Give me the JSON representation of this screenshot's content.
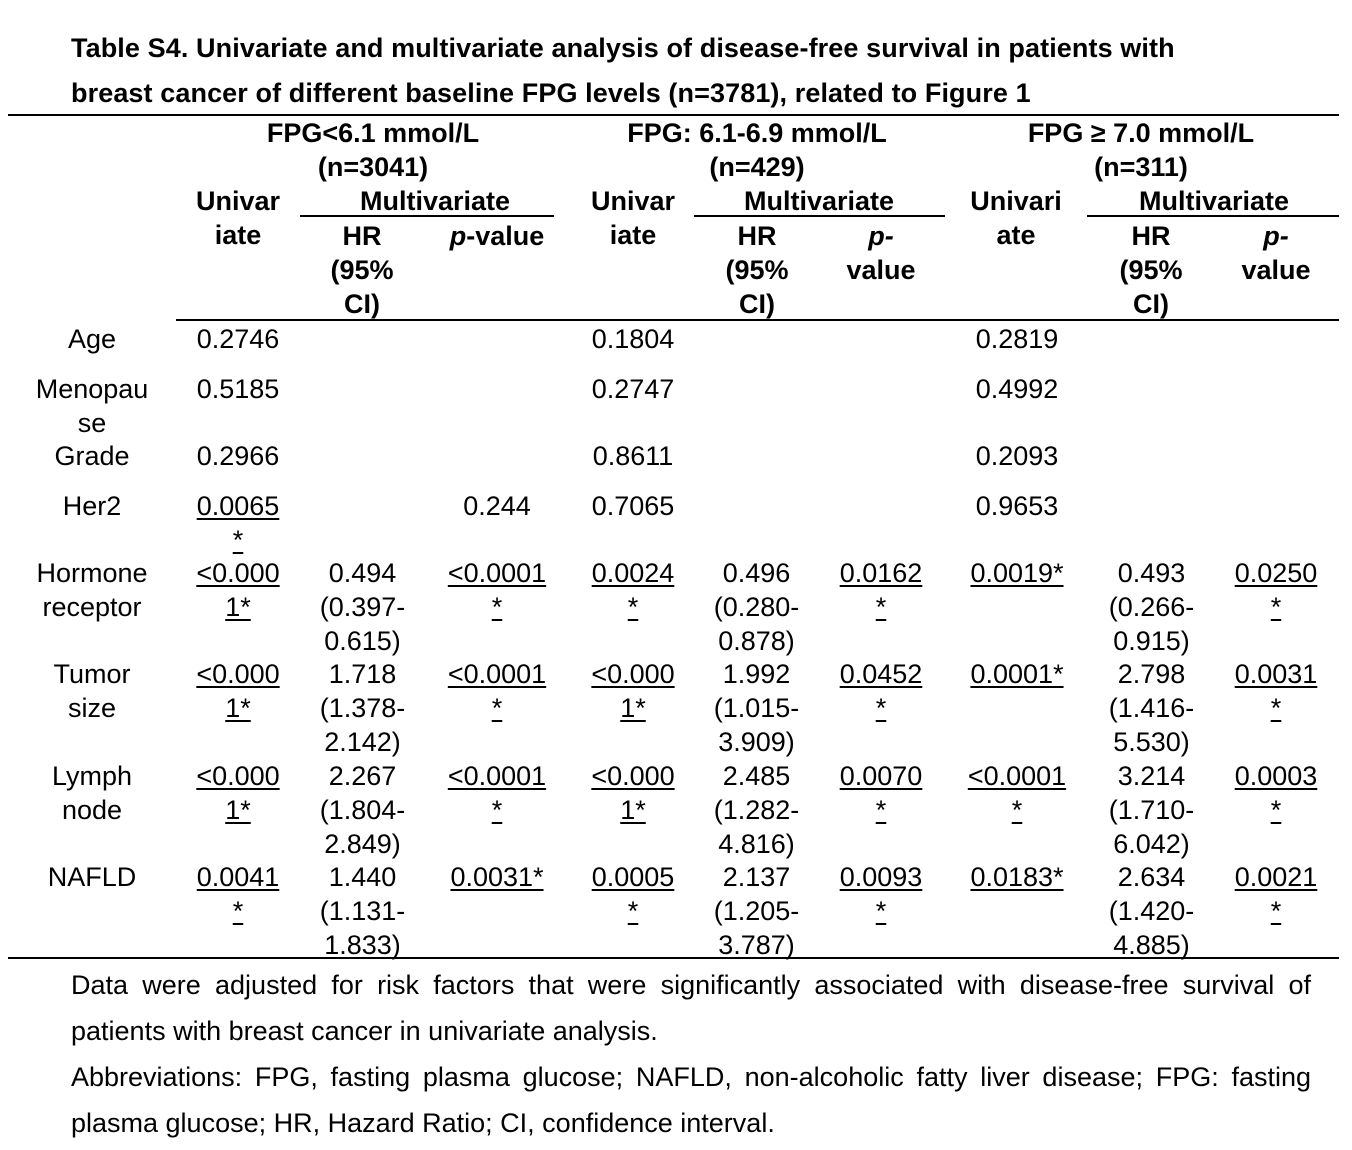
{
  "title_line1": "Table S4. Univariate and multivariate analysis of disease-free survival in patients with",
  "title_line2": "breast cancer of different baseline FPG levels (n=3781), related to Figure 1",
  "groups": [
    {
      "label": "FPG<6.1 mmol/L",
      "n": "(n=3041)"
    },
    {
      "label": "FPG: 6.1-6.9 mmol/L",
      "n": "(n=429)"
    },
    {
      "label": "FPG ≥ 7.0 mmol/L",
      "n": "(n=311)"
    }
  ],
  "headers": {
    "univ_a": "Univar",
    "univ_b": "iate",
    "univ3_a": "Univari",
    "univ3_b": "ate",
    "multivariate": "Multivariate",
    "hr_a": "HR",
    "hr_b": "(95%",
    "hr_c": "CI)",
    "p_full_italic": "p",
    "p_full_rest": "-value",
    "p_split_a": "p-",
    "p_split_b": "value"
  },
  "rows": [
    {
      "label": [
        "Age"
      ],
      "cells": [
        [
          "0.2746"
        ],
        [],
        [],
        [
          "0.1804"
        ],
        [],
        [],
        [
          "0.2819"
        ],
        [],
        []
      ]
    },
    {
      "label": [
        "Menopau",
        "se"
      ],
      "cells": [
        [
          "0.5185"
        ],
        [],
        [],
        [
          "0.2747"
        ],
        [],
        [],
        [
          "0.4992"
        ],
        [],
        []
      ]
    },
    {
      "label": [
        "Grade"
      ],
      "cells": [
        [
          "0.2966"
        ],
        [],
        [],
        [
          "0.8611"
        ],
        [],
        [],
        [
          "0.2093"
        ],
        [],
        []
      ]
    },
    {
      "label": [
        "Her2"
      ],
      "cells": [
        [
          "0.0065",
          "*"
        ],
        [],
        [
          "0.244"
        ],
        [
          "0.7065"
        ],
        [],
        [],
        [
          "0.9653"
        ],
        [],
        []
      ]
    },
    {
      "label": [
        "Hormone",
        "receptor"
      ],
      "cells": [
        [
          "<0.000",
          "1*"
        ],
        [
          "0.494",
          "(0.397-",
          "0.615)"
        ],
        [
          "<0.0001",
          "*"
        ],
        [
          "0.0024",
          "*"
        ],
        [
          "0.496",
          "(0.280-",
          "0.878)"
        ],
        [
          "0.0162",
          "*"
        ],
        [
          "0.0019*"
        ],
        [
          "0.493",
          "(0.266-",
          "0.915)"
        ],
        [
          "0.0250",
          "*"
        ]
      ]
    },
    {
      "label": [
        "Tumor",
        "size"
      ],
      "cells": [
        [
          "<0.000",
          "1*"
        ],
        [
          "1.718",
          "(1.378-",
          "2.142)"
        ],
        [
          "<0.0001",
          "*"
        ],
        [
          "<0.000",
          "1*"
        ],
        [
          "1.992",
          "(1.015-",
          "3.909)"
        ],
        [
          "0.0452",
          "*"
        ],
        [
          "0.0001*"
        ],
        [
          "2.798",
          "(1.416-",
          "5.530)"
        ],
        [
          "0.0031",
          "*"
        ]
      ]
    },
    {
      "label": [
        "Lymph",
        "node"
      ],
      "cells": [
        [
          "<0.000",
          "1*"
        ],
        [
          "2.267",
          "(1.804-",
          "2.849)"
        ],
        [
          "<0.0001",
          "*"
        ],
        [
          "<0.000",
          "1*"
        ],
        [
          "2.485",
          "(1.282-",
          "4.816)"
        ],
        [
          "0.0070",
          "*"
        ],
        [
          "<0.0001",
          "*"
        ],
        [
          "3.214",
          "(1.710-",
          "6.042)"
        ],
        [
          "0.0003",
          "*"
        ]
      ]
    },
    {
      "label": [
        "NAFLD"
      ],
      "cells": [
        [
          "0.0041",
          "*"
        ],
        [
          "1.440",
          "(1.131-",
          "1.833)"
        ],
        [
          "0.0031*"
        ],
        [
          "0.0005",
          "*"
        ],
        [
          "2.137",
          "(1.205-",
          "3.787)"
        ],
        [
          "0.0093",
          "*"
        ],
        [
          "0.0183*"
        ],
        [
          "2.634",
          "(1.420-",
          "4.885)"
        ],
        [
          "0.0021",
          "*"
        ]
      ]
    }
  ],
  "notes": [
    "Data were adjusted for risk factors that were significantly associated with disease-free survival of patients with breast cancer in univariate analysis.",
    "Abbreviations: FPG, fasting plasma glucose; NAFLD, non-alcoholic fatty liver disease; FPG: fasting plasma glucose; HR, Hazard Ratio; CI, confidence interval."
  ]
}
